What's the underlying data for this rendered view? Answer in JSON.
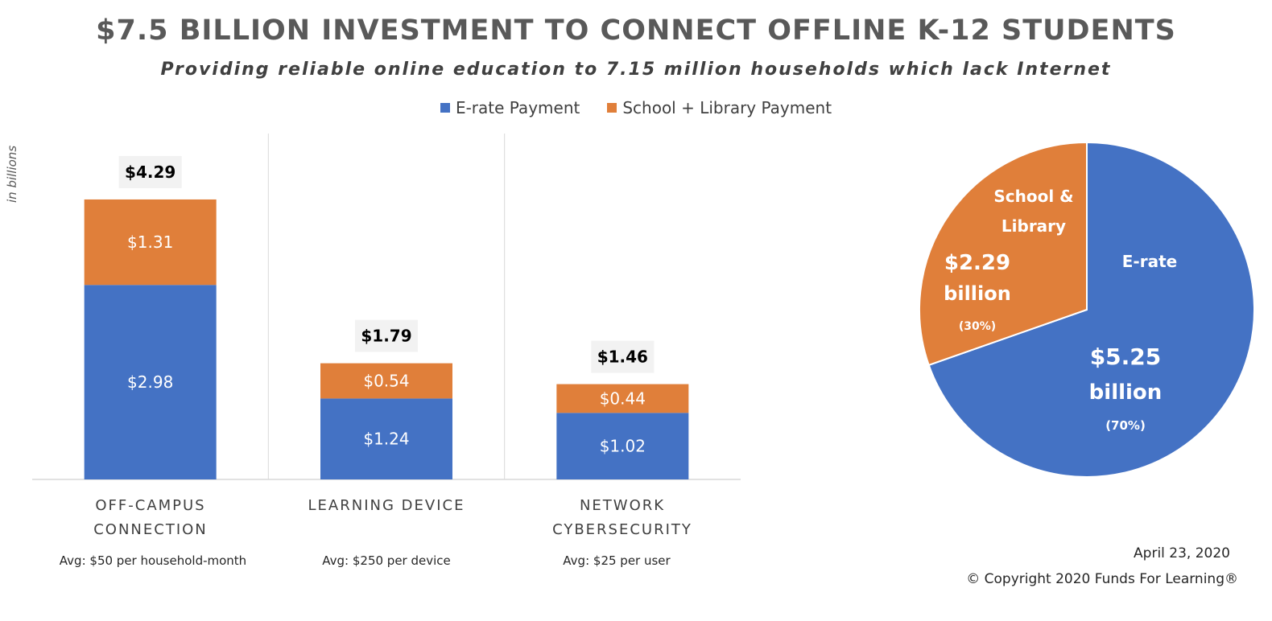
{
  "title": "$7.5 BILLION INVESTMENT TO CONNECT OFFLINE K-12 STUDENTS",
  "subtitle": "Providing reliable online education to 7.15 million households which lack Internet",
  "date": "April 23, 2020",
  "copyright": "© Copyright 2020 Funds For Learning®",
  "colors": {
    "erate": "#4472C4",
    "school": "#E07F3A"
  },
  "chart_data": [
    {
      "type": "bar",
      "stacked": true,
      "ylabel": "in billions",
      "legend": "top",
      "grid": false,
      "categories": [
        "OFF-CAMPUS CONNECTION",
        "LEARNING DEVICE",
        "NETWORK CYBERSECURITY"
      ],
      "category_lines": [
        [
          "OFF-CAMPUS",
          "CONNECTION"
        ],
        [
          "LEARNING DEVICE"
        ],
        [
          "NETWORK",
          "CYBERSECURITY"
        ]
      ],
      "series": [
        {
          "name": "E-rate Payment",
          "values": [
            2.98,
            1.24,
            1.02
          ],
          "labels": [
            "$2.98",
            "$1.24",
            "$1.02"
          ]
        },
        {
          "name": "School + Library Payment",
          "values": [
            1.31,
            0.54,
            0.44
          ],
          "labels": [
            "$1.31",
            "$0.54",
            "$0.44"
          ]
        }
      ],
      "totals": [
        "$4.29",
        "$1.79",
        "$1.46"
      ],
      "notes": [
        "Avg: $50 per household-month",
        "Avg: $250 per device",
        "Avg: $25 per user"
      ],
      "ylim": [
        0,
        5.3
      ]
    },
    {
      "type": "pie",
      "slices": [
        {
          "name": "E-rate",
          "value": 5.25,
          "percent": 70,
          "lines": [
            "E-rate",
            "$5.25",
            "billion",
            "(70%)"
          ]
        },
        {
          "name": "School & Library",
          "value": 2.29,
          "percent": 30,
          "lines": [
            "School &",
            "Library",
            "$2.29",
            "billion",
            "(30%)"
          ]
        }
      ]
    }
  ]
}
